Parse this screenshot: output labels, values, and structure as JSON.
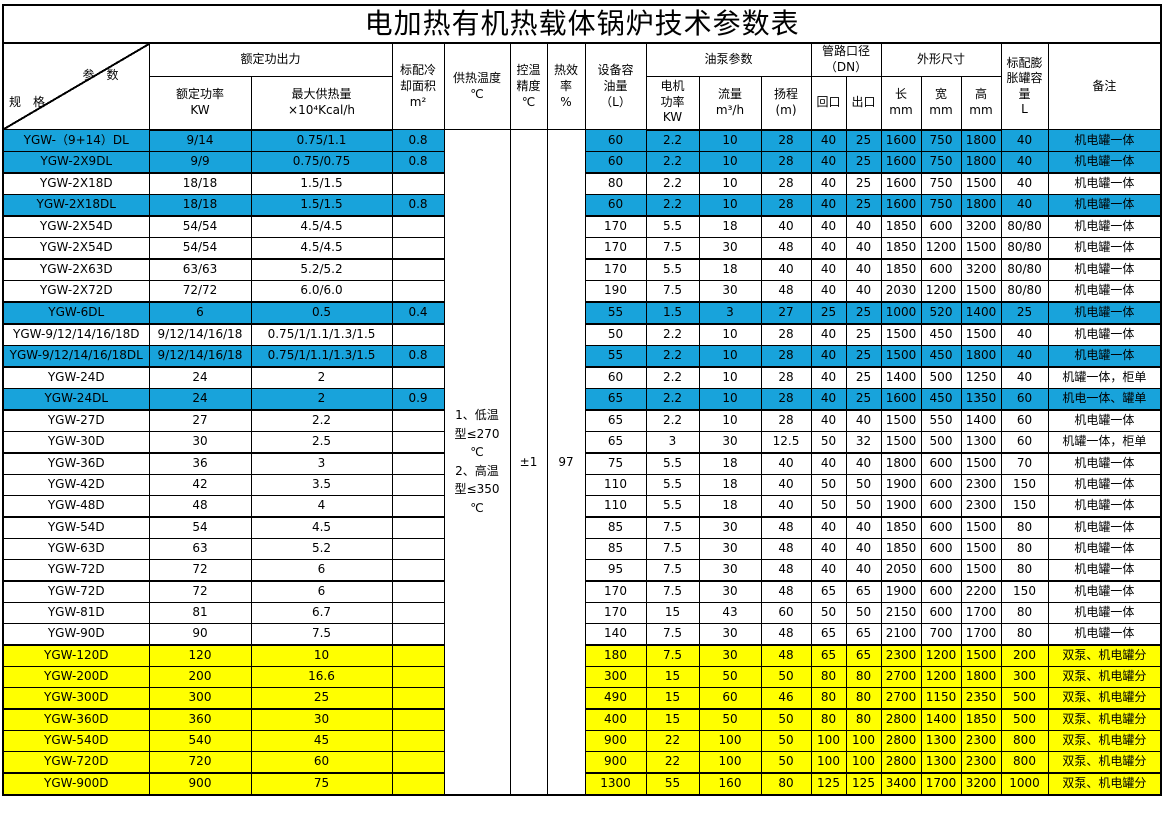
{
  "title": "电加热有机热载体锅炉技术参数表",
  "colors": {
    "cyan_row": "#18A3DB",
    "yellow_row": "#FFFF00",
    "border": "#000000",
    "background": "#FFFFFF"
  },
  "header": {
    "corner_param": "参　数",
    "corner_spec": "规　格",
    "groups": {
      "rated_output": "额定功出力",
      "pump_params": "油泵参数",
      "pipe_diameter": "管路口径\n（DN）",
      "dimensions": "外形尺寸"
    },
    "cols": {
      "rated_power": "额定功率\nKW",
      "max_heat": "最大供热量\n×10⁴Kcal/h",
      "cooling_area": "标配冷\n却面积\nm²",
      "supply_temp": "供热温度\n℃",
      "temp_precision": "控温\n精度\n℃",
      "efficiency": "热效\n率\n%",
      "oil_capacity": "设备容\n油量\n（L）",
      "motor_power": "电机\n功率\nKW",
      "flow": "流量\nm³/h",
      "lift": "扬程\n(m)",
      "inlet": "回口",
      "outlet": "出口",
      "length": "长\nmm",
      "width": "宽\nmm",
      "height": "高\nmm",
      "expansion_tank": "标配膨\n胀罐容\n量\nL",
      "remark": "备注"
    }
  },
  "merged": {
    "supply_temp": "1、低温\n型≤270\n℃\n2、高温\n型≤350\n℃",
    "temp_precision": "±1",
    "efficiency": "97"
  },
  "cell_names": [
    "cell-model",
    "cell-rated-power",
    "cell-max-heat",
    "cell-cooling-area",
    "cell-oil-capacity",
    "cell-motor-power",
    "cell-flow",
    "cell-lift",
    "cell-inlet-dn",
    "cell-outlet-dn",
    "cell-length",
    "cell-width",
    "cell-height",
    "cell-tank-volume",
    "cell-remark"
  ],
  "rows": [
    {
      "bg": "cyan",
      "thick": false,
      "cells": [
        "YGW-（9+14）DL",
        "9/14",
        "0.75/1.1",
        "0.8",
        "60",
        "2.2",
        "10",
        "28",
        "40",
        "25",
        "1600",
        "750",
        "1800",
        "40",
        "机电罐一体"
      ]
    },
    {
      "bg": "cyan",
      "thick": true,
      "cells": [
        "YGW-2X9DL",
        "9/9",
        "0.75/0.75",
        "0.8",
        "60",
        "2.2",
        "10",
        "28",
        "40",
        "25",
        "1600",
        "750",
        "1800",
        "40",
        "机电罐一体"
      ]
    },
    {
      "bg": "white",
      "thick": false,
      "cells": [
        "YGW-2X18D",
        "18/18",
        "1.5/1.5",
        "",
        "80",
        "2.2",
        "10",
        "28",
        "40",
        "25",
        "1600",
        "750",
        "1500",
        "40",
        "机电罐一体"
      ]
    },
    {
      "bg": "cyan",
      "thick": true,
      "cells": [
        "YGW-2X18DL",
        "18/18",
        "1.5/1.5",
        "0.8",
        "60",
        "2.2",
        "10",
        "28",
        "40",
        "25",
        "1600",
        "750",
        "1800",
        "40",
        "机电罐一体"
      ]
    },
    {
      "bg": "white",
      "thick": false,
      "cells": [
        "YGW-2X54D",
        "54/54",
        "4.5/4.5",
        "",
        "170",
        "5.5",
        "18",
        "40",
        "40",
        "40",
        "1850",
        "600",
        "3200",
        "80/80",
        "机电罐一体"
      ]
    },
    {
      "bg": "white",
      "thick": true,
      "cells": [
        "YGW-2X54D",
        "54/54",
        "4.5/4.5",
        "",
        "170",
        "7.5",
        "30",
        "48",
        "40",
        "40",
        "1850",
        "1200",
        "1500",
        "80/80",
        "机电罐一体"
      ]
    },
    {
      "bg": "white",
      "thick": false,
      "cells": [
        "YGW-2X63D",
        "63/63",
        "5.2/5.2",
        "",
        "170",
        "5.5",
        "18",
        "40",
        "40",
        "40",
        "1850",
        "600",
        "3200",
        "80/80",
        "机电罐一体"
      ]
    },
    {
      "bg": "white",
      "thick": true,
      "cells": [
        "YGW-2X72D",
        "72/72",
        "6.0/6.0",
        "",
        "190",
        "7.5",
        "30",
        "48",
        "40",
        "40",
        "2030",
        "1200",
        "1500",
        "80/80",
        "机电罐一体"
      ]
    },
    {
      "bg": "cyan",
      "thick": true,
      "cells": [
        "YGW-6DL",
        "6",
        "0.5",
        "0.4",
        "55",
        "1.5",
        "3",
        "27",
        "25",
        "25",
        "1000",
        "520",
        "1400",
        "25",
        "机电罐一体"
      ]
    },
    {
      "bg": "white",
      "thick": false,
      "cells": [
        "YGW-9/12/14/16/18D",
        "9/12/14/16/18",
        "0.75/1/1.1/1.3/1.5",
        "",
        "50",
        "2.2",
        "10",
        "28",
        "40",
        "25",
        "1500",
        "450",
        "1500",
        "40",
        "机电罐一体"
      ]
    },
    {
      "bg": "cyan",
      "thick": true,
      "cells": [
        "YGW-9/12/14/16/18DL",
        "9/12/14/16/18",
        "0.75/1/1.1/1.3/1.5",
        "0.8",
        "55",
        "2.2",
        "10",
        "28",
        "40",
        "25",
        "1500",
        "450",
        "1800",
        "40",
        "机电罐一体"
      ]
    },
    {
      "bg": "white",
      "thick": false,
      "cells": [
        "YGW-24D",
        "24",
        "2",
        "",
        "60",
        "2.2",
        "10",
        "28",
        "40",
        "25",
        "1400",
        "500",
        "1250",
        "40",
        "机罐一体，柜单"
      ]
    },
    {
      "bg": "cyan",
      "thick": true,
      "cells": [
        "YGW-24DL",
        "24",
        "2",
        "0.9",
        "65",
        "2.2",
        "10",
        "28",
        "40",
        "25",
        "1600",
        "450",
        "1350",
        "60",
        "机电一体、罐单"
      ]
    },
    {
      "bg": "white",
      "thick": false,
      "cells": [
        "YGW-27D",
        "27",
        "2.2",
        "",
        "65",
        "2.2",
        "10",
        "28",
        "40",
        "40",
        "1500",
        "550",
        "1400",
        "60",
        "机电罐一体"
      ]
    },
    {
      "bg": "white",
      "thick": true,
      "cells": [
        "YGW-30D",
        "30",
        "2.5",
        "",
        "65",
        "3",
        "30",
        "12.5",
        "50",
        "32",
        "1500",
        "500",
        "1300",
        "60",
        "机罐一体，柜单"
      ]
    },
    {
      "bg": "white",
      "thick": false,
      "cells": [
        "YGW-36D",
        "36",
        "3",
        "",
        "75",
        "5.5",
        "18",
        "40",
        "40",
        "40",
        "1800",
        "600",
        "1500",
        "70",
        "机电罐一体"
      ]
    },
    {
      "bg": "white",
      "thick": false,
      "cells": [
        "YGW-42D",
        "42",
        "3.5",
        "",
        "110",
        "5.5",
        "18",
        "40",
        "50",
        "50",
        "1900",
        "600",
        "2300",
        "150",
        "机电罐一体"
      ]
    },
    {
      "bg": "white",
      "thick": true,
      "cells": [
        "YGW-48D",
        "48",
        "4",
        "",
        "110",
        "5.5",
        "18",
        "40",
        "50",
        "50",
        "1900",
        "600",
        "2300",
        "150",
        "机电罐一体"
      ]
    },
    {
      "bg": "white",
      "thick": false,
      "cells": [
        "YGW-54D",
        "54",
        "4.5",
        "",
        "85",
        "7.5",
        "30",
        "48",
        "40",
        "40",
        "1850",
        "600",
        "1500",
        "80",
        "机电罐一体"
      ]
    },
    {
      "bg": "white",
      "thick": false,
      "cells": [
        "YGW-63D",
        "63",
        "5.2",
        "",
        "85",
        "7.5",
        "30",
        "48",
        "40",
        "40",
        "1850",
        "600",
        "1500",
        "80",
        "机电罐一体"
      ]
    },
    {
      "bg": "white",
      "thick": true,
      "cells": [
        "YGW-72D",
        "72",
        "6",
        "",
        "95",
        "7.5",
        "30",
        "48",
        "40",
        "40",
        "2050",
        "600",
        "1500",
        "80",
        "机电罐一体"
      ]
    },
    {
      "bg": "white",
      "thick": false,
      "cells": [
        "YGW-72D",
        "72",
        "6",
        "",
        "170",
        "7.5",
        "30",
        "48",
        "65",
        "65",
        "1900",
        "600",
        "2200",
        "150",
        "机电罐一体"
      ]
    },
    {
      "bg": "white",
      "thick": false,
      "cells": [
        "YGW-81D",
        "81",
        "6.7",
        "",
        "170",
        "15",
        "43",
        "60",
        "50",
        "50",
        "2150",
        "600",
        "1700",
        "80",
        "机电罐一体"
      ]
    },
    {
      "bg": "white",
      "thick": true,
      "cells": [
        "YGW-90D",
        "90",
        "7.5",
        "",
        "140",
        "7.5",
        "30",
        "48",
        "65",
        "65",
        "2100",
        "700",
        "1700",
        "80",
        "机电罐一体"
      ]
    },
    {
      "bg": "yellow",
      "thick": false,
      "cells": [
        "YGW-120D",
        "120",
        "10",
        "",
        "180",
        "7.5",
        "30",
        "48",
        "65",
        "65",
        "2300",
        "1200",
        "1500",
        "200",
        "双泵、机电罐分"
      ]
    },
    {
      "bg": "yellow",
      "thick": false,
      "cells": [
        "YGW-200D",
        "200",
        "16.6",
        "",
        "300",
        "15",
        "50",
        "50",
        "80",
        "80",
        "2700",
        "1200",
        "1800",
        "300",
        "双泵、机电罐分"
      ]
    },
    {
      "bg": "yellow",
      "thick": true,
      "cells": [
        "YGW-300D",
        "300",
        "25",
        "",
        "490",
        "15",
        "60",
        "46",
        "80",
        "80",
        "2700",
        "1150",
        "2350",
        "500",
        "双泵、机电罐分"
      ]
    },
    {
      "bg": "yellow",
      "thick": false,
      "cells": [
        "YGW-360D",
        "360",
        "30",
        "",
        "400",
        "15",
        "50",
        "50",
        "80",
        "80",
        "2800",
        "1400",
        "1850",
        "500",
        "双泵、机电罐分"
      ]
    },
    {
      "bg": "yellow",
      "thick": false,
      "cells": [
        "YGW-540D",
        "540",
        "45",
        "",
        "900",
        "22",
        "100",
        "50",
        "100",
        "100",
        "2800",
        "1300",
        "2300",
        "800",
        "双泵、机电罐分"
      ]
    },
    {
      "bg": "yellow",
      "thick": true,
      "cells": [
        "YGW-720D",
        "720",
        "60",
        "",
        "900",
        "22",
        "100",
        "50",
        "100",
        "100",
        "2800",
        "1300",
        "2300",
        "800",
        "双泵、机电罐分"
      ]
    },
    {
      "bg": "yellow",
      "thick": false,
      "cells": [
        "YGW-900D",
        "900",
        "75",
        "",
        "1300",
        "55",
        "160",
        "80",
        "125",
        "125",
        "3400",
        "1700",
        "3200",
        "1000",
        "双泵、机电罐分"
      ]
    }
  ]
}
